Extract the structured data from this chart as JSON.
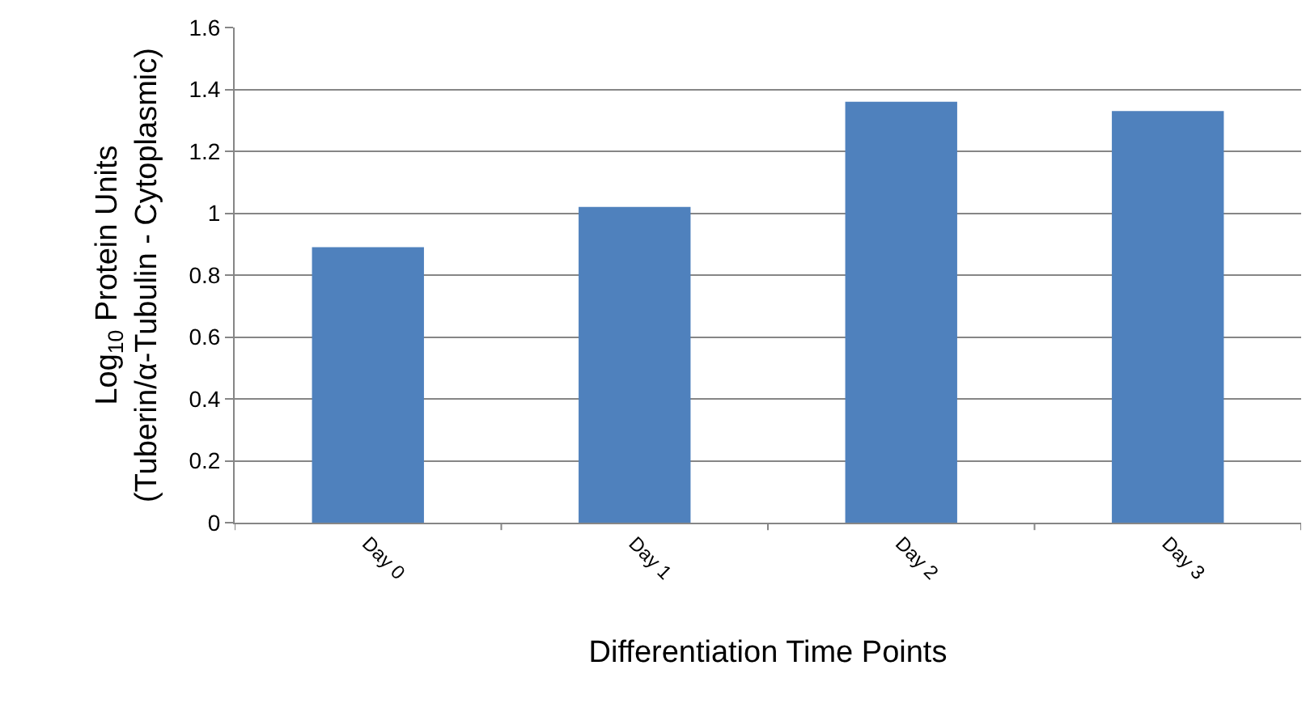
{
  "chart_data": {
    "type": "bar",
    "categories": [
      "Day 0",
      "Day 1",
      "Day 2",
      "Day 3"
    ],
    "values": [
      0.89,
      1.02,
      1.36,
      1.33
    ],
    "color": "#4f81bd",
    "xlabel": "Differentiation Time Points",
    "ylabel": "Log$_{10}$ Protein Units\n(Tuberin/α-Tubulin - Cytoplasmic)",
    "ylim": [
      0,
      1.6
    ],
    "yticks": [
      0,
      0.2,
      0.4,
      0.6,
      0.8,
      1,
      1.2,
      1.4,
      1.6
    ],
    "grid": "y",
    "legend": false
  }
}
